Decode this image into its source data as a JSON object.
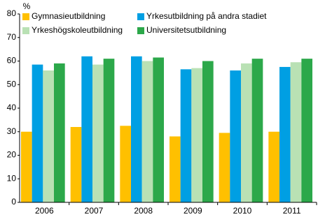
{
  "chart_data": {
    "type": "bar",
    "y_label": "%",
    "categories": [
      "2006",
      "2007",
      "2008",
      "2009",
      "2010",
      "2011"
    ],
    "series": [
      {
        "name": "Gymnasieutbildning",
        "color": "#ffc000",
        "values": [
          30,
          32,
          32.5,
          28,
          29.5,
          30
        ]
      },
      {
        "name": "Yrkesutbildning på andra stadiet",
        "color": "#009fe3",
        "values": [
          58.5,
          62,
          62,
          56.5,
          56,
          57.5
        ]
      },
      {
        "name": "Yrkeshögskoleutbildning",
        "color": "#b9e1b4",
        "values": [
          56,
          58.5,
          60,
          57,
          59,
          59.5
        ]
      },
      {
        "name": "Universitetsutbildning",
        "color": "#2ca84a",
        "values": [
          59,
          61,
          61.5,
          60,
          61,
          61
        ]
      }
    ],
    "ylim": [
      0,
      80
    ],
    "yticks": [
      0,
      10,
      20,
      30,
      40,
      50,
      60,
      70,
      80
    ],
    "grid": false,
    "legend": "top"
  }
}
